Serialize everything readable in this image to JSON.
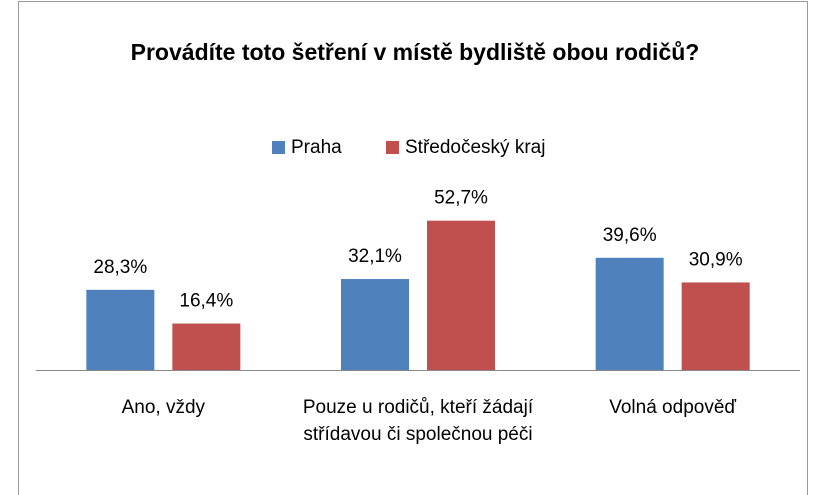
{
  "chart_data": {
    "type": "bar",
    "title": "Provádíte toto šetření v místě bydliště obou rodičů?",
    "categories": [
      "Ano, vždy",
      "Pouze u rodičů, kteří žádají střídavou či společnou péči",
      "Volná odpověď"
    ],
    "series": [
      {
        "name": "Praha",
        "color": "#4f81bd",
        "values": [
          28.3,
          32.1,
          39.6
        ],
        "value_labels": [
          "28,3%",
          "32,1%",
          "39,6%"
        ]
      },
      {
        "name": "Středočeský kraj",
        "color": "#c0504d",
        "values": [
          16.4,
          52.7,
          30.9
        ],
        "value_labels": [
          "16,4%",
          "52,7%",
          "30,9%"
        ]
      }
    ],
    "ylim": [
      0,
      60
    ],
    "legend": "top"
  }
}
